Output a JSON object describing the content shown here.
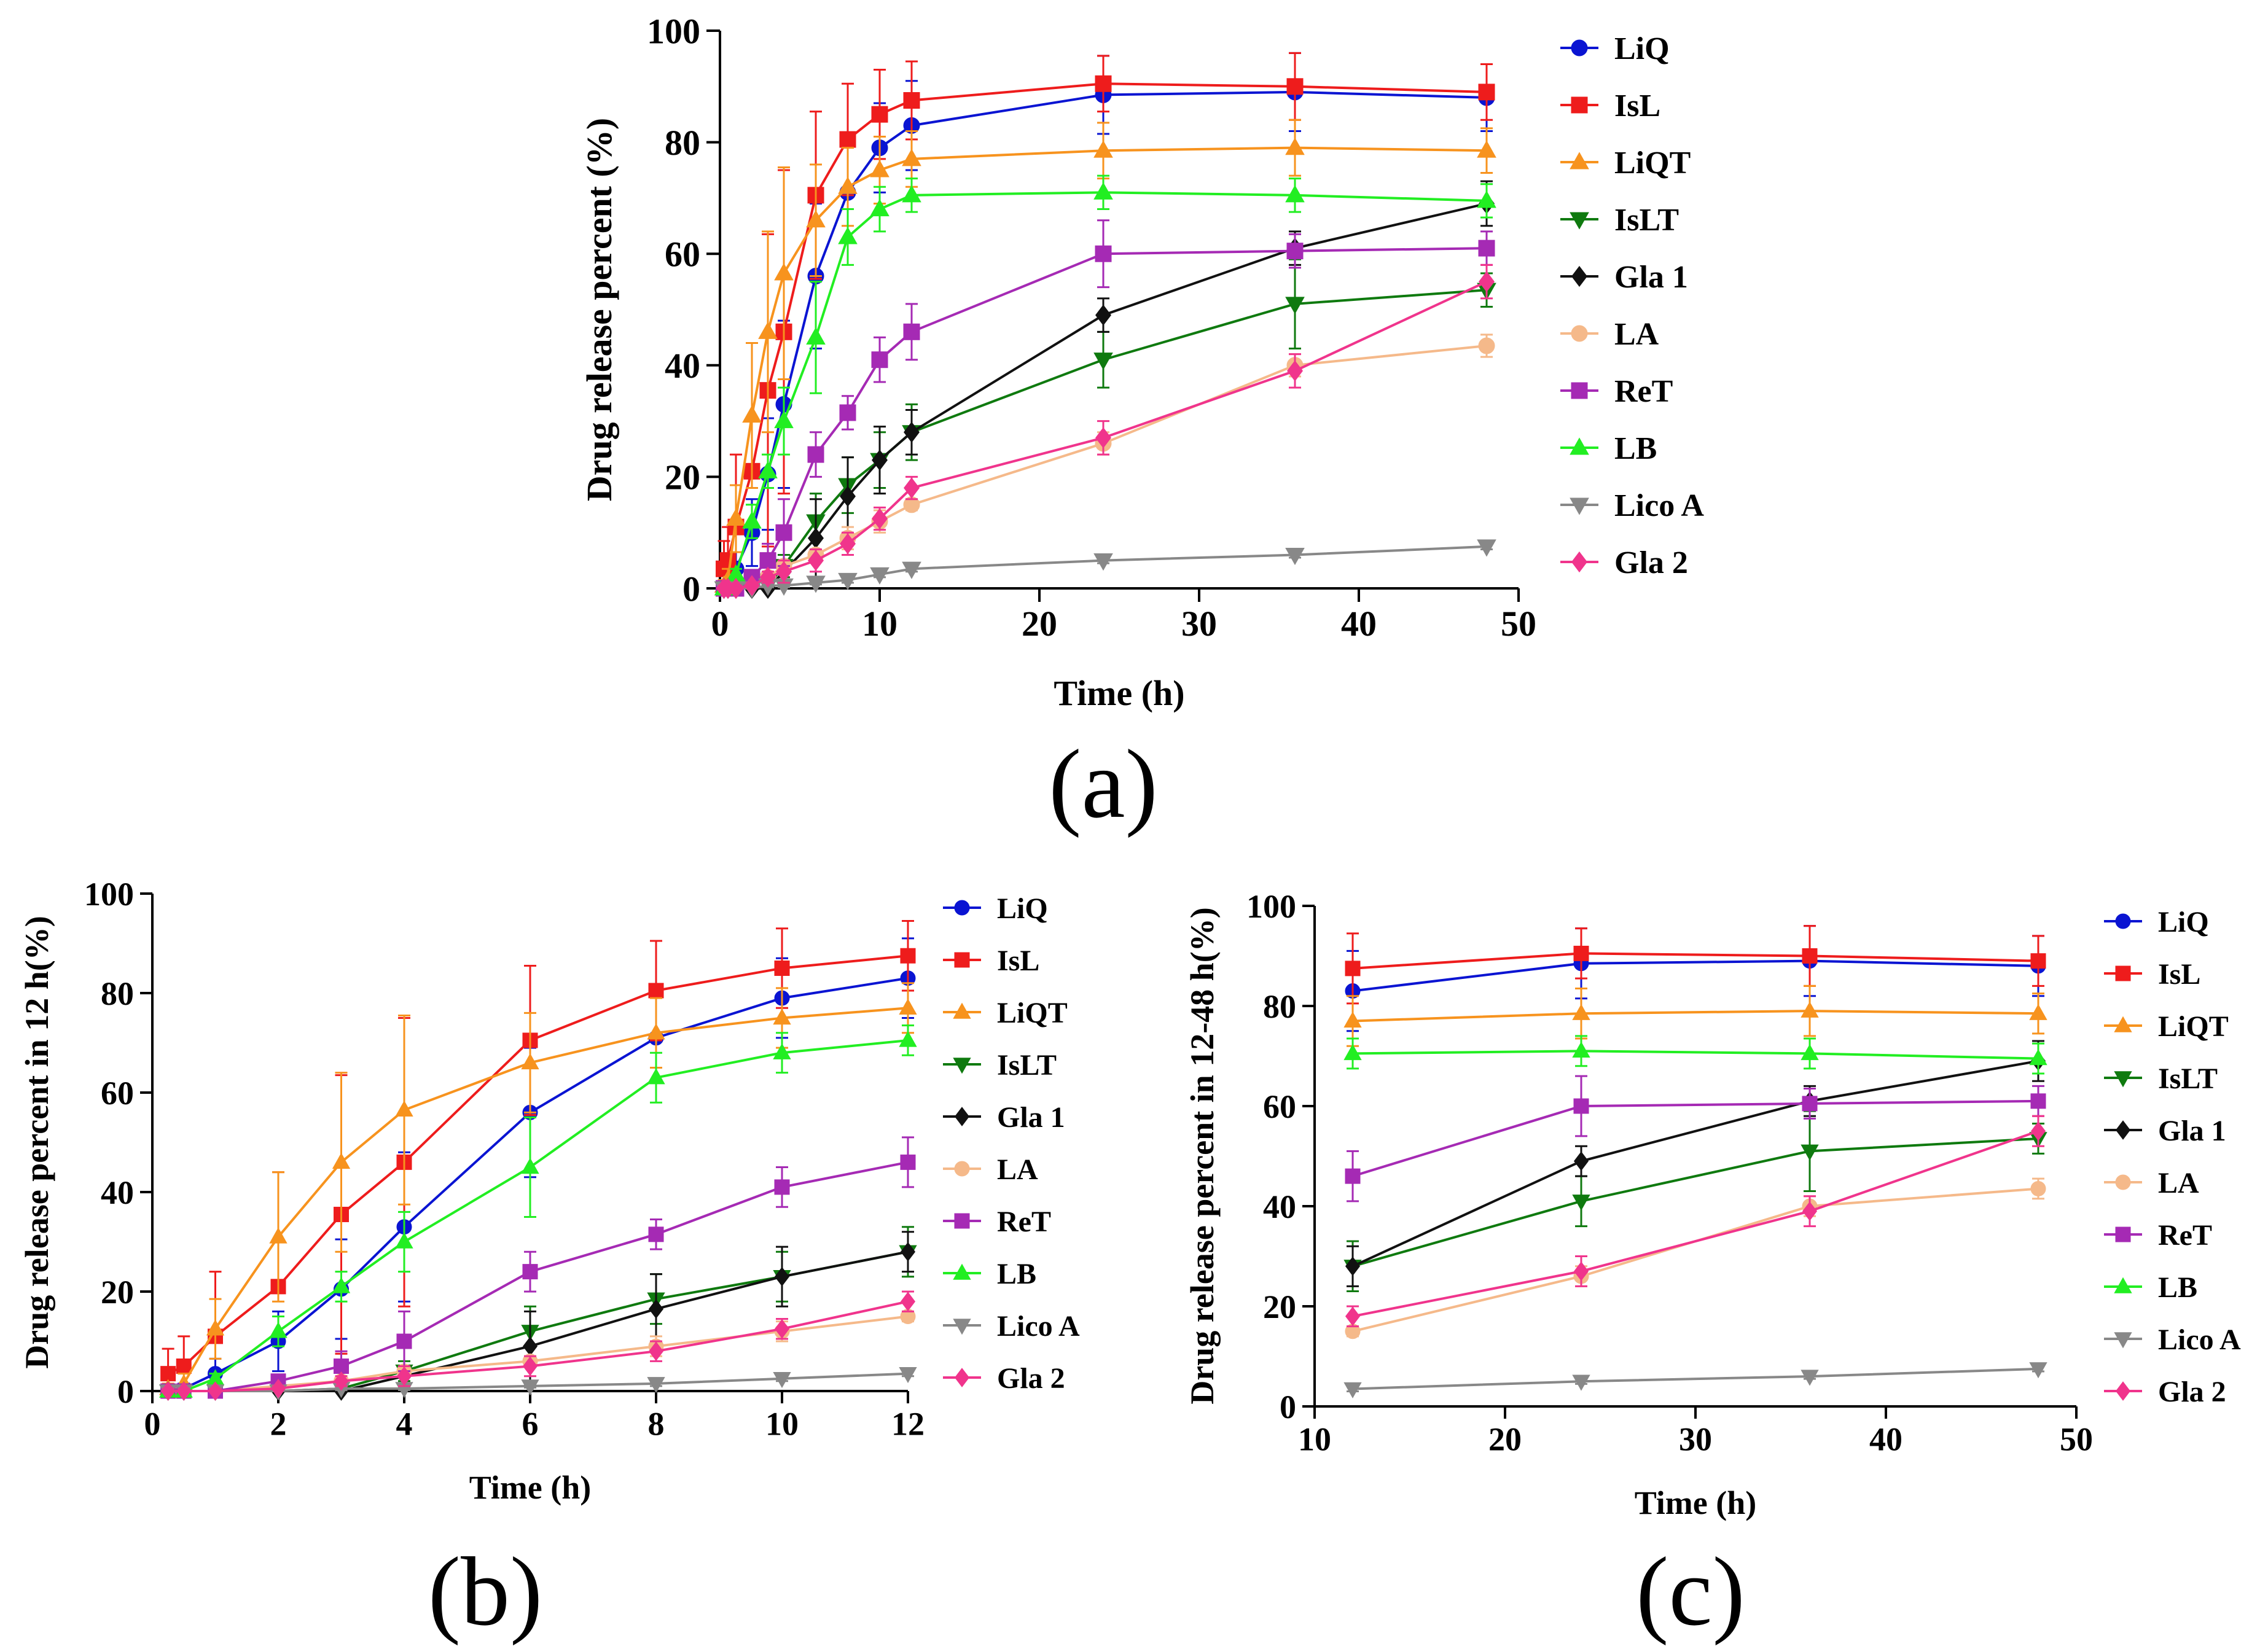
{
  "series_styles": [
    {
      "name": "LiQ",
      "color": "#0a14d2",
      "marker": "circle"
    },
    {
      "name": "IsL",
      "color": "#ee1c1c",
      "marker": "square"
    },
    {
      "name": "LiQT",
      "color": "#f7931e",
      "marker": "triangle-up"
    },
    {
      "name": "IsLT",
      "color": "#0f7a0f",
      "marker": "triangle-down"
    },
    {
      "name": "Gla 1",
      "color": "#111111",
      "marker": "diamond"
    },
    {
      "name": "LA",
      "color": "#f5b98a",
      "marker": "circle"
    },
    {
      "name": "ReT",
      "color": "#a52ab4",
      "marker": "square"
    },
    {
      "name": "LB",
      "color": "#22ee22",
      "marker": "triangle-up"
    },
    {
      "name": "Lico A",
      "color": "#888888",
      "marker": "triangle-down"
    },
    {
      "name": "Gla 2",
      "color": "#f0348c",
      "marker": "diamond"
    }
  ],
  "chart_data": [
    {
      "type": "line",
      "panel_label": "(a)",
      "xlabel": "Time (h)",
      "ylabel": "Drug release percent (%)",
      "xlim": [
        0,
        50
      ],
      "ylim": [
        0,
        100
      ],
      "xticks": [
        0,
        10,
        20,
        30,
        40,
        50
      ],
      "yticks": [
        0,
        20,
        40,
        60,
        80,
        100
      ],
      "legend": "right",
      "x": [
        0.25,
        0.5,
        1,
        2,
        3,
        4,
        6,
        8,
        10,
        12,
        24,
        36,
        48
      ],
      "series": [
        {
          "name": "LiQ",
          "values": [
            0,
            0.5,
            3.5,
            10,
            20.5,
            33,
            56,
            71,
            79,
            83,
            88.5,
            89,
            88
          ],
          "err": [
            1,
            1,
            3,
            6,
            10,
            15,
            13,
            9,
            8,
            8,
            7,
            7,
            6
          ]
        },
        {
          "name": "IsL",
          "values": [
            3.5,
            5,
            11,
            21,
            35.5,
            46,
            70.5,
            80.5,
            85,
            87.5,
            90.5,
            90,
            89
          ],
          "err": [
            5,
            6,
            13,
            23,
            28,
            29,
            15,
            10,
            8,
            7,
            5,
            6,
            5
          ]
        },
        {
          "name": "LiQT",
          "values": [
            0.5,
            1.5,
            12.5,
            31,
            46,
            56.5,
            66,
            72,
            75,
            77,
            78.5,
            79,
            78.5
          ],
          "err": [
            1,
            2,
            6,
            13,
            18,
            19,
            10,
            7,
            6,
            5,
            5,
            5,
            4
          ]
        },
        {
          "name": "IsLT",
          "values": [
            0,
            0,
            0,
            0,
            0.5,
            4,
            12,
            18.5,
            23,
            28,
            41,
            51,
            53.5
          ],
          "err": [
            0.5,
            0.5,
            0.5,
            0.5,
            1,
            2,
            5,
            5,
            5,
            5,
            5,
            8,
            3
          ]
        },
        {
          "name": "Gla 1",
          "values": [
            0,
            0,
            0,
            0,
            0,
            3,
            9,
            16.5,
            23,
            28,
            49,
            61,
            69
          ],
          "err": [
            0.5,
            0.5,
            0.5,
            0.5,
            0.5,
            2,
            7,
            7,
            6,
            4,
            3,
            3,
            4
          ]
        },
        {
          "name": "LA",
          "values": [
            0,
            0,
            0,
            1,
            2,
            4,
            6,
            9,
            12,
            15,
            26,
            40,
            43.5
          ],
          "err": [
            0.5,
            0.5,
            0.5,
            1,
            1,
            1,
            1,
            2,
            2,
            1,
            2,
            2,
            2
          ]
        },
        {
          "name": "ReT",
          "values": [
            0,
            0,
            0,
            2,
            5,
            10,
            24,
            31.5,
            41,
            46,
            60,
            60.5,
            61
          ],
          "err": [
            0.5,
            0.5,
            0.5,
            1,
            3,
            6,
            4,
            3,
            4,
            5,
            6,
            3,
            3
          ]
        },
        {
          "name": "LB",
          "values": [
            0,
            0,
            2.5,
            12,
            21,
            30,
            45,
            63,
            68,
            70.5,
            71,
            70.5,
            69.5
          ],
          "err": [
            0.5,
            0.5,
            1,
            3,
            3,
            6,
            10,
            5,
            4,
            3,
            3,
            3,
            3
          ]
        },
        {
          "name": "Lico A",
          "values": [
            0,
            0,
            0,
            0,
            0.5,
            0.5,
            1,
            1.5,
            2.5,
            3.5,
            5,
            6,
            7.5
          ],
          "err": [
            0.3,
            0.3,
            0.3,
            0.3,
            0.3,
            0.3,
            0.3,
            0.5,
            0.5,
            0.5,
            0.5,
            0.5,
            0.5
          ]
        },
        {
          "name": "Gla 2",
          "values": [
            0,
            0,
            0,
            0.5,
            2,
            3,
            5,
            8,
            12.5,
            18,
            27,
            39,
            55
          ],
          "err": [
            0.5,
            0.5,
            0.5,
            0.5,
            1,
            2,
            2,
            2,
            2,
            2,
            3,
            3,
            3
          ]
        }
      ]
    },
    {
      "type": "line",
      "panel_label": "(b)",
      "xlabel": "Time (h)",
      "ylabel": "Drug release percent in 12 h(%)",
      "xlim": [
        0,
        12
      ],
      "ylim": [
        0,
        100
      ],
      "xticks": [
        0,
        2,
        4,
        6,
        8,
        10,
        12
      ],
      "yticks": [
        0,
        20,
        40,
        60,
        80,
        100
      ],
      "legend": "right",
      "x": [
        0.25,
        0.5,
        1,
        2,
        3,
        4,
        6,
        8,
        10,
        12
      ],
      "series": [
        {
          "name": "LiQ",
          "values": [
            0,
            0.5,
            3.5,
            10,
            20.5,
            33,
            56,
            71,
            79,
            83
          ],
          "err": [
            1,
            1,
            3,
            6,
            10,
            15,
            13,
            9,
            8,
            8
          ]
        },
        {
          "name": "IsL",
          "values": [
            3.5,
            5,
            11,
            21,
            35.5,
            46,
            70.5,
            80.5,
            85,
            87.5
          ],
          "err": [
            5,
            6,
            13,
            23,
            28,
            29,
            15,
            10,
            8,
            7
          ]
        },
        {
          "name": "LiQT",
          "values": [
            0.5,
            1.5,
            12.5,
            31,
            46,
            56.5,
            66,
            72,
            75,
            77
          ],
          "err": [
            1,
            2,
            6,
            13,
            18,
            19,
            10,
            7,
            6,
            5
          ]
        },
        {
          "name": "IsLT",
          "values": [
            0,
            0,
            0,
            0,
            0.5,
            4,
            12,
            18.5,
            23,
            28
          ],
          "err": [
            0.5,
            0.5,
            0.5,
            0.5,
            1,
            2,
            5,
            5,
            5,
            5
          ]
        },
        {
          "name": "Gla 1",
          "values": [
            0,
            0,
            0,
            0,
            0,
            3,
            9,
            16.5,
            23,
            28
          ],
          "err": [
            0.5,
            0.5,
            0.5,
            0.5,
            0.5,
            2,
            7,
            7,
            6,
            4
          ]
        },
        {
          "name": "LA",
          "values": [
            0,
            0,
            0,
            1,
            2,
            4,
            6,
            9,
            12,
            15
          ],
          "err": [
            0.5,
            0.5,
            0.5,
            1,
            1,
            1,
            1,
            2,
            2,
            1
          ]
        },
        {
          "name": "ReT",
          "values": [
            0,
            0,
            0,
            2,
            5,
            10,
            24,
            31.5,
            41,
            46
          ],
          "err": [
            0.5,
            0.5,
            0.5,
            1,
            3,
            6,
            4,
            3,
            4,
            5
          ]
        },
        {
          "name": "LB",
          "values": [
            0,
            0,
            2.5,
            12,
            21,
            30,
            45,
            63,
            68,
            70.5
          ],
          "err": [
            0.5,
            0.5,
            1,
            3,
            3,
            6,
            10,
            5,
            4,
            3
          ]
        },
        {
          "name": "Lico A",
          "values": [
            0,
            0,
            0,
            0,
            0.5,
            0.5,
            1,
            1.5,
            2.5,
            3.5
          ],
          "err": [
            0.3,
            0.3,
            0.3,
            0.3,
            0.3,
            0.3,
            0.3,
            0.5,
            0.5,
            0.5
          ]
        },
        {
          "name": "Gla 2",
          "values": [
            0,
            0,
            0,
            0.5,
            2,
            3,
            5,
            8,
            12.5,
            18
          ],
          "err": [
            0.5,
            0.5,
            0.5,
            0.5,
            1,
            2,
            2,
            2,
            2,
            2
          ]
        }
      ]
    },
    {
      "type": "line",
      "panel_label": "(c)",
      "xlabel": "Time (h)",
      "ylabel": "Drug release percent in 12-48 h(%)",
      "xlim": [
        10,
        50
      ],
      "ylim": [
        0,
        100
      ],
      "xticks": [
        10,
        20,
        30,
        40,
        50
      ],
      "yticks": [
        0,
        20,
        40,
        60,
        80,
        100
      ],
      "legend": "right",
      "x": [
        12,
        24,
        36,
        48
      ],
      "series": [
        {
          "name": "LiQ",
          "values": [
            83,
            88.5,
            89,
            88
          ],
          "err": [
            8,
            7,
            7,
            6
          ]
        },
        {
          "name": "IsL",
          "values": [
            87.5,
            90.5,
            90,
            89
          ],
          "err": [
            7,
            5,
            6,
            5
          ]
        },
        {
          "name": "LiQT",
          "values": [
            77,
            78.5,
            79,
            78.5
          ],
          "err": [
            5,
            5,
            5,
            4
          ]
        },
        {
          "name": "IsLT",
          "values": [
            28,
            41,
            51,
            53.5
          ],
          "err": [
            5,
            5,
            8,
            3
          ]
        },
        {
          "name": "Gla 1",
          "values": [
            28,
            49,
            61,
            69
          ],
          "err": [
            4,
            3,
            3,
            4
          ]
        },
        {
          "name": "LA",
          "values": [
            15,
            26,
            40,
            43.5
          ],
          "err": [
            1,
            2,
            2,
            2
          ]
        },
        {
          "name": "ReT",
          "values": [
            46,
            60,
            60.5,
            61
          ],
          "err": [
            5,
            6,
            3,
            3
          ]
        },
        {
          "name": "LB",
          "values": [
            70.5,
            71,
            70.5,
            69.5
          ],
          "err": [
            3,
            3,
            3,
            3
          ]
        },
        {
          "name": "Lico A",
          "values": [
            3.5,
            5,
            6,
            7.5
          ],
          "err": [
            0.5,
            0.5,
            0.5,
            0.5
          ]
        },
        {
          "name": "Gla 2",
          "values": [
            18,
            27,
            39,
            55
          ],
          "err": [
            2,
            3,
            3,
            3
          ]
        }
      ]
    }
  ]
}
